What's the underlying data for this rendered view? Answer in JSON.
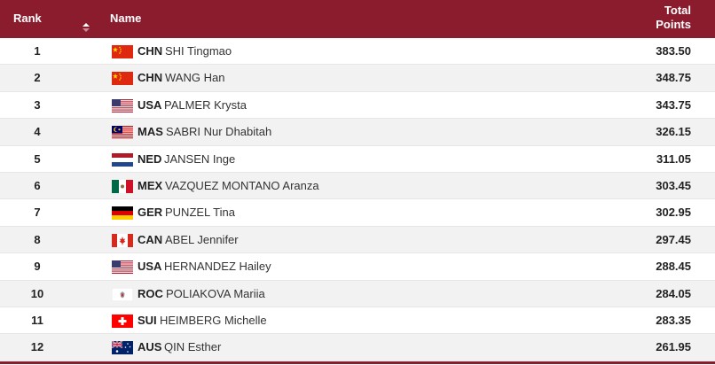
{
  "header": {
    "rank_label": "Rank",
    "name_label": "Name",
    "total_label_line1": "Total",
    "total_label_line2": "Points"
  },
  "colors": {
    "header_bg": "#8b1c2e",
    "alt_row": "#f2f2f2"
  },
  "rows": [
    {
      "rank": "1",
      "noc": "CHN",
      "athlete": "SHI Tingmao",
      "points": "383.50",
      "flag": "china-flag-icon"
    },
    {
      "rank": "2",
      "noc": "CHN",
      "athlete": "WANG Han",
      "points": "348.75",
      "flag": "china-flag-icon"
    },
    {
      "rank": "3",
      "noc": "USA",
      "athlete": "PALMER Krysta",
      "points": "343.75",
      "flag": "usa-flag-icon"
    },
    {
      "rank": "4",
      "noc": "MAS",
      "athlete": "SABRI Nur Dhabitah",
      "points": "326.15",
      "flag": "malaysia-flag-icon"
    },
    {
      "rank": "5",
      "noc": "NED",
      "athlete": "JANSEN Inge",
      "points": "311.05",
      "flag": "netherlands-flag-icon"
    },
    {
      "rank": "6",
      "noc": "MEX",
      "athlete": "VAZQUEZ MONTANO Aranza",
      "points": "303.45",
      "flag": "mexico-flag-icon"
    },
    {
      "rank": "7",
      "noc": "GER",
      "athlete": "PUNZEL Tina",
      "points": "302.95",
      "flag": "germany-flag-icon"
    },
    {
      "rank": "8",
      "noc": "CAN",
      "athlete": "ABEL Jennifer",
      "points": "297.45",
      "flag": "canada-flag-icon"
    },
    {
      "rank": "9",
      "noc": "USA",
      "athlete": "HERNANDEZ Hailey",
      "points": "288.45",
      "flag": "usa-flag-icon"
    },
    {
      "rank": "10",
      "noc": "ROC",
      "athlete": "POLIAKOVA Mariia",
      "points": "284.05",
      "flag": "roc-flag-icon"
    },
    {
      "rank": "11",
      "noc": "SUI",
      "athlete": "HEIMBERG Michelle",
      "points": "283.35",
      "flag": "switzerland-flag-icon"
    },
    {
      "rank": "12",
      "noc": "AUS",
      "athlete": "QIN Esther",
      "points": "261.95",
      "flag": "australia-flag-icon"
    }
  ]
}
